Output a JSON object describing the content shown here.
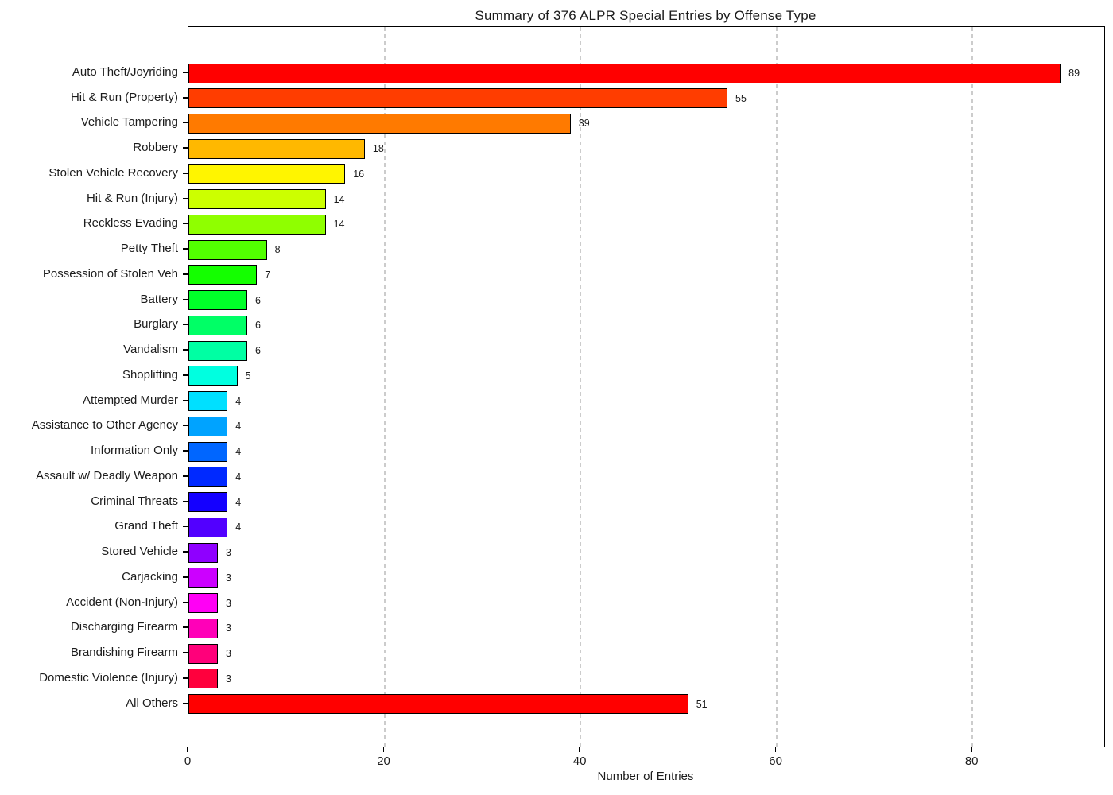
{
  "chart_data": {
    "type": "bar",
    "orientation": "horizontal",
    "title": "Summary of 376 ALPR Special Entries by Offense Type",
    "xlabel": "Number of Entries",
    "xlim": [
      0,
      93.45
    ],
    "xticks": [
      "0",
      "20",
      "40",
      "60",
      "80"
    ],
    "xtick_values": [
      0,
      20,
      40,
      60,
      80
    ],
    "grid": "vertical dashed gridlines at x ticks",
    "legend": "none",
    "value_labels_shown": true,
    "categories": [
      "Auto Theft/Joyriding",
      "Hit & Run (Property)",
      "Vehicle Tampering",
      "Robbery",
      "Stolen Vehicle Recovery",
      "Hit & Run (Injury)",
      "Reckless Evading",
      "Petty Theft",
      "Possession of Stolen Veh",
      "Battery",
      "Burglary",
      "Vandalism",
      "Shoplifting",
      "Attempted Murder",
      "Assistance to Other Agency",
      "Information Only",
      "Assault w/ Deadly Weapon",
      "Criminal Threats",
      "Grand Theft",
      "Stored Vehicle",
      "Carjacking",
      "Accident (Non-Injury)",
      "Discharging Firearm",
      "Brandishing Firearm",
      "Domestic Violence (Injury)",
      "All Others"
    ],
    "values": [
      89,
      55,
      39,
      18,
      16,
      14,
      14,
      8,
      7,
      6,
      6,
      6,
      5,
      4,
      4,
      4,
      4,
      4,
      4,
      3,
      3,
      3,
      3,
      3,
      3,
      51
    ],
    "bar_colors": [
      "#ff0000",
      "#ff3d00",
      "#ff7a00",
      "#ffb800",
      "#fff500",
      "#ccff00",
      "#8fff00",
      "#52ff00",
      "#14ff00",
      "#00ff29",
      "#00ff66",
      "#00ffa3",
      "#00ffe0",
      "#00e0ff",
      "#00a3ff",
      "#0066ff",
      "#0029ff",
      "#1400ff",
      "#5200ff",
      "#8f00ff",
      "#cc00ff",
      "#ff00f5",
      "#ff00b8",
      "#ff007a",
      "#ff003d",
      "#ff0000"
    ],
    "bar_edge_color": "#000000",
    "grid_color": "#cccccc",
    "text_color": "#1c1c1c",
    "background_color": "#ffffff"
  }
}
